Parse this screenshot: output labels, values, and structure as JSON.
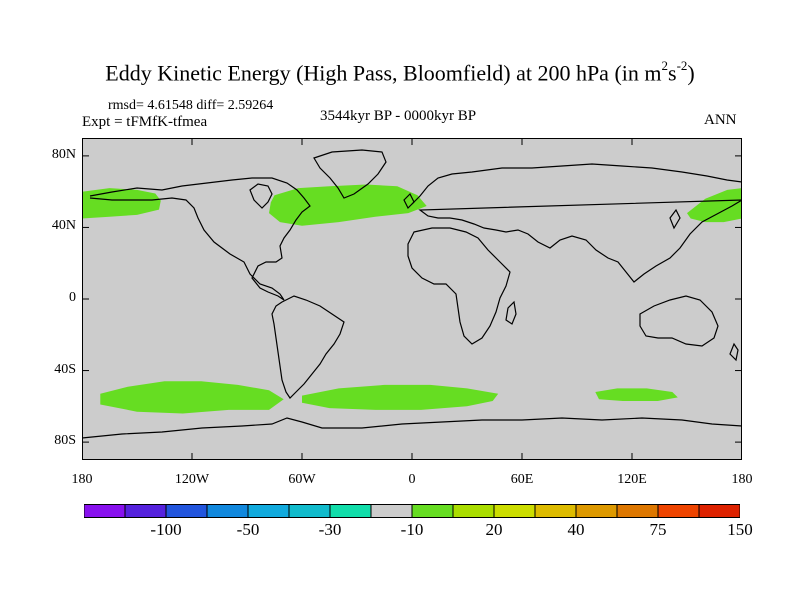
{
  "title": {
    "main": "Eddy Kinetic Energy (High Pass, Bloomfield) at 200 hPa (in m",
    "sup1": "2",
    "mid": "s",
    "sup2": "-2",
    "close": ")"
  },
  "stats": "rmsd= 4.61548 diff= 2.59264",
  "expt": "Expt = tFMfK-tfmea",
  "period": "3544kyr BP - 0000kyr BP",
  "season": "ANN",
  "axes": {
    "y_ticks": [
      {
        "label": "80N",
        "lat": 80
      },
      {
        "label": "40N",
        "lat": 40
      },
      {
        "label": "0",
        "lat": 0
      },
      {
        "label": "40S",
        "lat": -40
      },
      {
        "label": "80S",
        "lat": -80
      }
    ],
    "x_ticks": [
      {
        "label": "180",
        "lon": -180
      },
      {
        "label": "120W",
        "lon": -120
      },
      {
        "label": "60W",
        "lon": -60
      },
      {
        "label": "0",
        "lon": 0
      },
      {
        "label": "60E",
        "lon": 60
      },
      {
        "label": "120E",
        "lon": 120
      },
      {
        "label": "180",
        "lon": 180
      }
    ],
    "lon_range": [
      -180,
      180
    ],
    "lat_range": [
      -90,
      90
    ]
  },
  "map_background_color": "#cccccc",
  "positive_region_color": "#66dd22",
  "positive_regions": [
    {
      "name": "north-pacific-west",
      "outline": [
        [
          -180,
          60
        ],
        [
          -165,
          62
        ],
        [
          -150,
          61
        ],
        [
          -140,
          59
        ],
        [
          -137,
          55
        ],
        [
          -138,
          50
        ],
        [
          -150,
          47
        ],
        [
          -165,
          46
        ],
        [
          -180,
          45
        ]
      ]
    },
    {
      "name": "north-atlantic",
      "outline": [
        [
          -75,
          58
        ],
        [
          -62,
          62
        ],
        [
          -45,
          63
        ],
        [
          -25,
          64
        ],
        [
          -8,
          63
        ],
        [
          3,
          58
        ],
        [
          8,
          52
        ],
        [
          -2,
          48
        ],
        [
          -20,
          46
        ],
        [
          -40,
          43
        ],
        [
          -60,
          41
        ],
        [
          -72,
          43
        ],
        [
          -78,
          48
        ],
        [
          -77,
          54
        ]
      ]
    },
    {
      "name": "north-pacific-east",
      "outline": [
        [
          150,
          48
        ],
        [
          160,
          56
        ],
        [
          172,
          61
        ],
        [
          180,
          62
        ],
        [
          180,
          45
        ],
        [
          170,
          43
        ],
        [
          160,
          43
        ],
        [
          152,
          45
        ]
      ]
    },
    {
      "name": "southern-ocean-west",
      "outline": [
        [
          -170,
          -53
        ],
        [
          -155,
          -49
        ],
        [
          -135,
          -46
        ],
        [
          -115,
          -46
        ],
        [
          -95,
          -48
        ],
        [
          -78,
          -51
        ],
        [
          -70,
          -56
        ],
        [
          -78,
          -62
        ],
        [
          -100,
          -62
        ],
        [
          -125,
          -64
        ],
        [
          -150,
          -63
        ],
        [
          -170,
          -59
        ]
      ]
    },
    {
      "name": "southern-ocean-central",
      "outline": [
        [
          -60,
          -54
        ],
        [
          -40,
          -50
        ],
        [
          -15,
          -48
        ],
        [
          10,
          -48
        ],
        [
          30,
          -50
        ],
        [
          47,
          -53
        ],
        [
          44,
          -57
        ],
        [
          30,
          -60
        ],
        [
          5,
          -62
        ],
        [
          -20,
          -62
        ],
        [
          -45,
          -61
        ],
        [
          -60,
          -58
        ]
      ]
    },
    {
      "name": "southern-ocean-east",
      "outline": [
        [
          100,
          -52
        ],
        [
          112,
          -50
        ],
        [
          128,
          -50
        ],
        [
          142,
          -52
        ],
        [
          145,
          -55
        ],
        [
          134,
          -57
        ],
        [
          115,
          -57
        ],
        [
          102,
          -56
        ]
      ]
    }
  ],
  "colorbar": {
    "colors": [
      "#8811ee",
      "#5522dd",
      "#2255dd",
      "#1188dd",
      "#11aadd",
      "#11bbcc",
      "#11ddaa",
      "#cccccc",
      "#66dd22",
      "#aadd00",
      "#ccdd00",
      "#ddbb00",
      "#dd9900",
      "#dd7700",
      "#ee4400",
      "#dd2200"
    ],
    "labels": [
      {
        "text": "-100",
        "edge": 2
      },
      {
        "text": "-50",
        "edge": 4
      },
      {
        "text": "-30",
        "edge": 6
      },
      {
        "text": "-10",
        "edge": 8
      },
      {
        "text": "20",
        "edge": 10
      },
      {
        "text": "40",
        "edge": 12
      },
      {
        "text": "75",
        "edge": 14
      },
      {
        "text": "150",
        "edge": 16
      }
    ]
  }
}
